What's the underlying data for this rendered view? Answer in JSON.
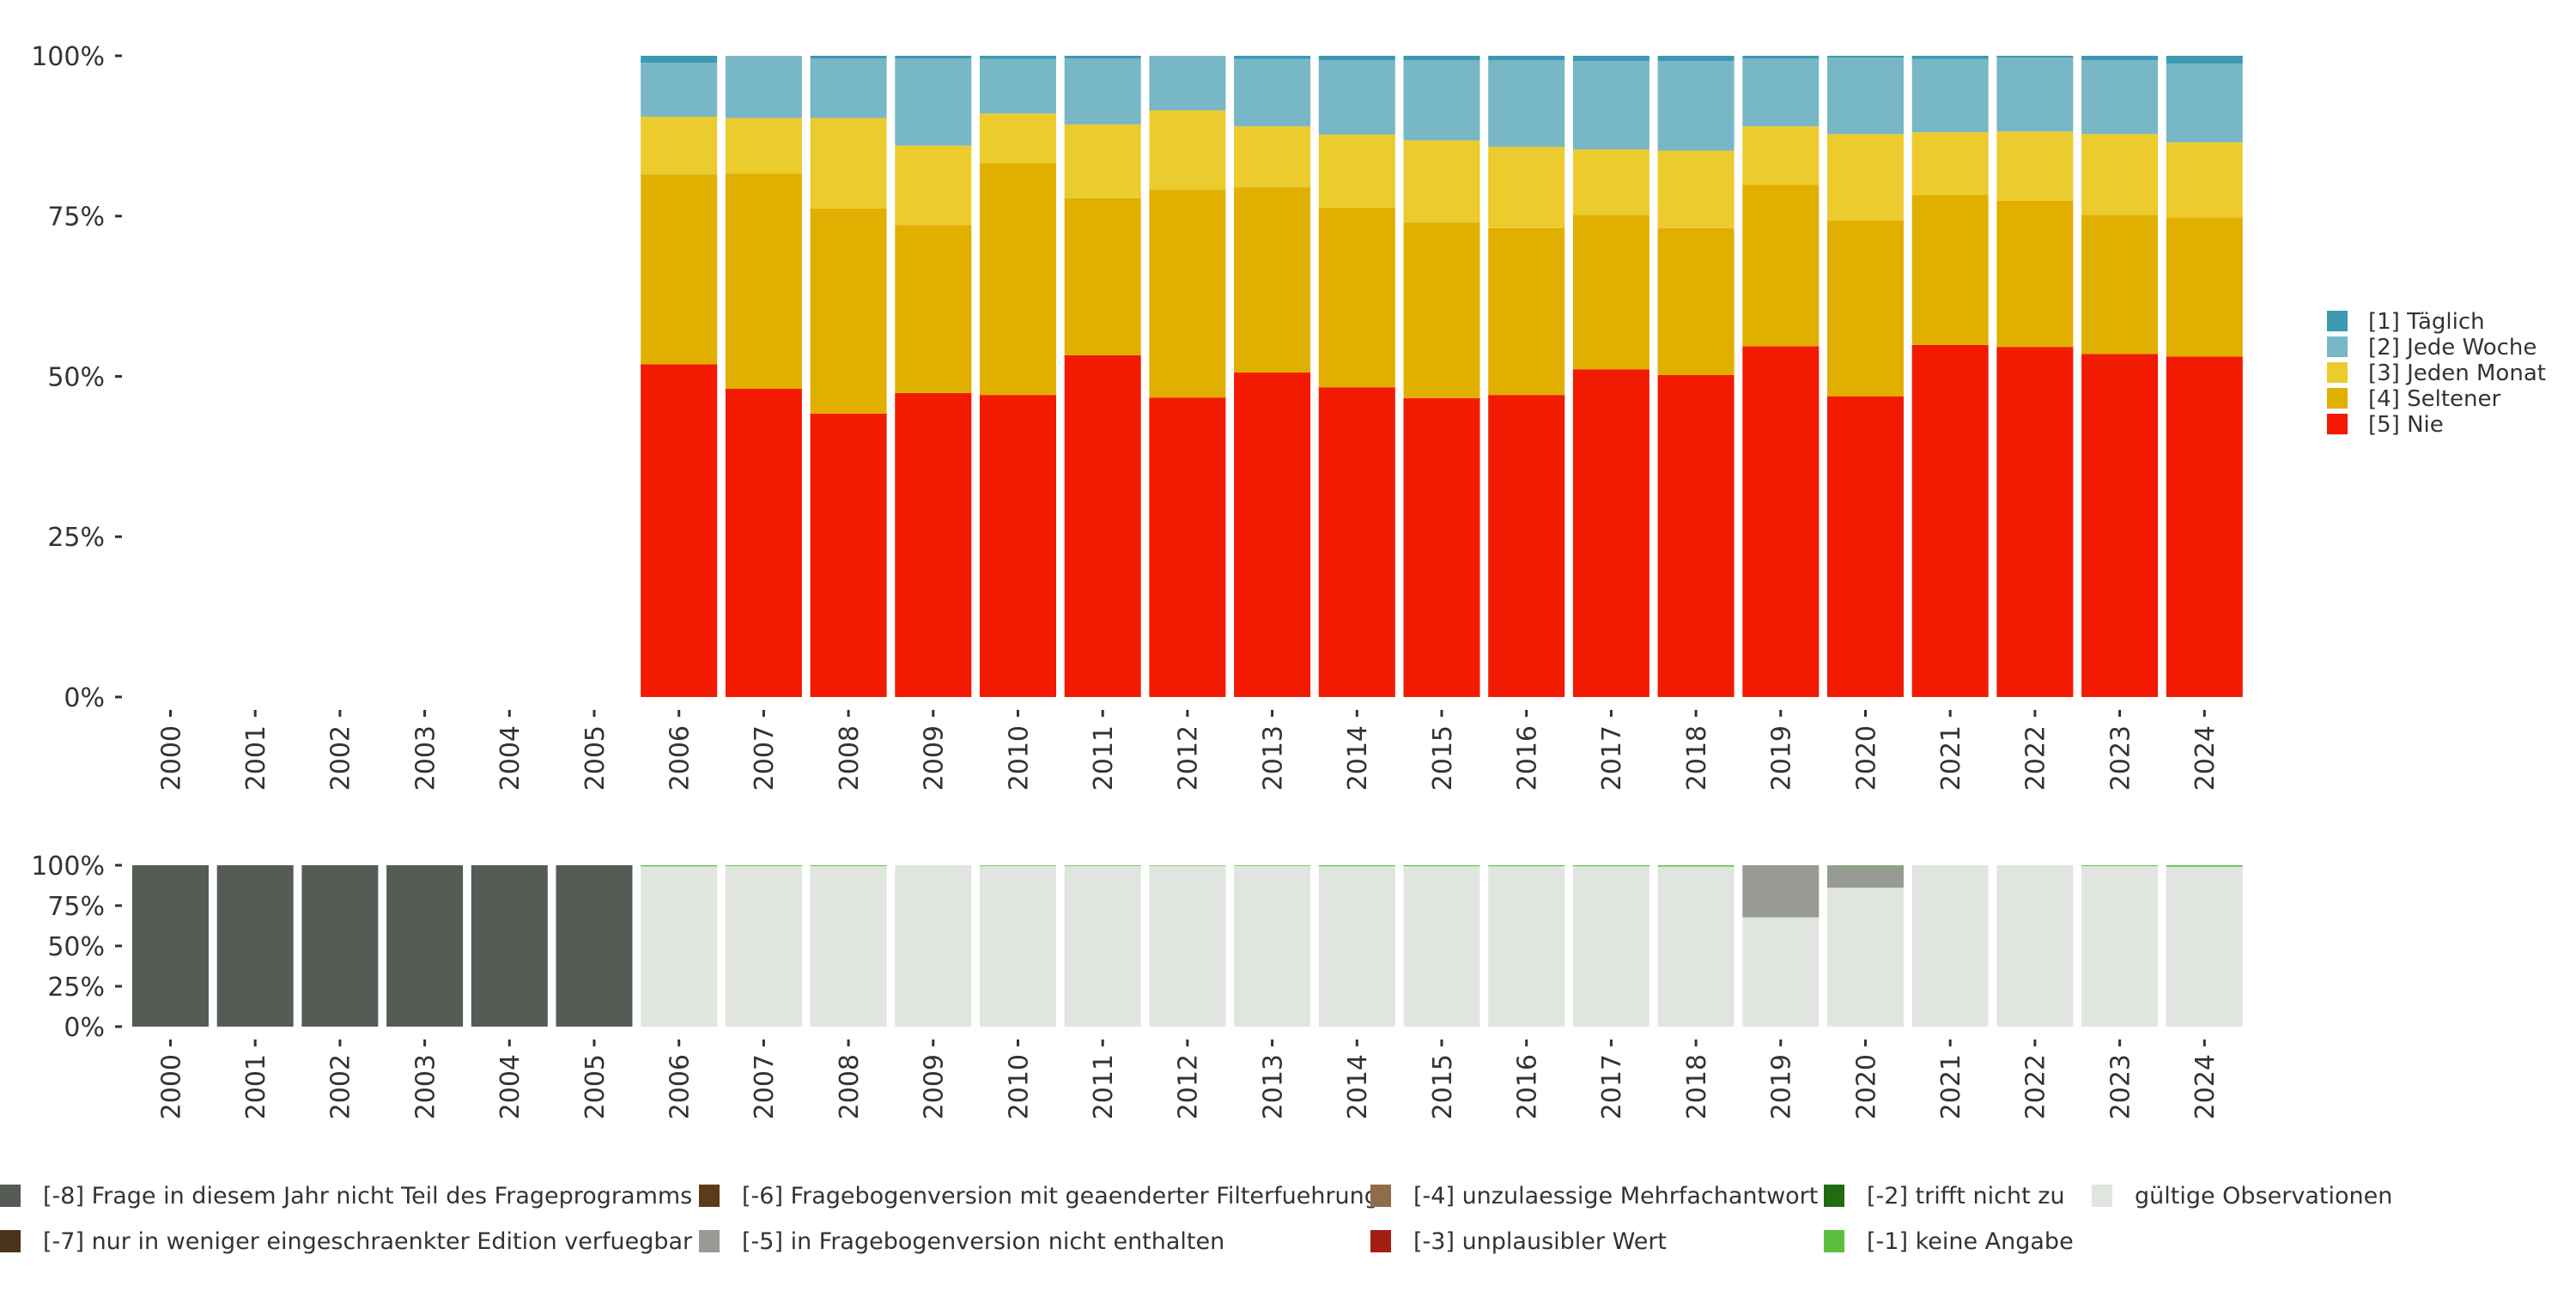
{
  "chart_data": [
    {
      "type": "bar",
      "stacked": true,
      "title": "",
      "xlabel": "",
      "ylabel": "",
      "ylim": [
        0,
        100
      ],
      "y_ticks": [
        "0%",
        "25%",
        "50%",
        "75%",
        "100%"
      ],
      "categories": [
        "2000",
        "2001",
        "2002",
        "2003",
        "2004",
        "2005",
        "2006",
        "2007",
        "2008",
        "2009",
        "2010",
        "2011",
        "2012",
        "2013",
        "2014",
        "2015",
        "2016",
        "2017",
        "2018",
        "2019",
        "2020",
        "2021",
        "2022",
        "2023",
        "2024"
      ],
      "legend_position": "right",
      "series": [
        {
          "name": "[5] Nie",
          "color": "#f21a00",
          "values": [
            0,
            0,
            0,
            0,
            0,
            0,
            51.9,
            48.1,
            44.2,
            47.4,
            47.1,
            53.3,
            46.7,
            50.6,
            48.3,
            46.6,
            47.1,
            51.1,
            50.2,
            54.7,
            46.9,
            54.9,
            54.6,
            53.5,
            53.1
          ]
        },
        {
          "name": "[4] Seltener",
          "color": "#e0af00",
          "values": [
            0,
            0,
            0,
            0,
            0,
            0,
            29.6,
            33.5,
            32.0,
            26.2,
            36.1,
            24.5,
            32.4,
            28.9,
            28.0,
            27.4,
            26.0,
            24.1,
            22.9,
            25.2,
            27.4,
            23.4,
            22.8,
            21.7,
            21.7
          ]
        },
        {
          "name": "[3] Jeden Monat",
          "color": "#ebcb2e",
          "values": [
            0,
            0,
            0,
            0,
            0,
            0,
            9.0,
            8.7,
            14.1,
            12.4,
            7.8,
            11.5,
            12.4,
            9.5,
            11.4,
            12.8,
            12.7,
            10.2,
            12.1,
            9.1,
            13.5,
            9.8,
            10.8,
            12.6,
            11.7
          ]
        },
        {
          "name": "[2] Jede Woche",
          "color": "#78b7c5",
          "values": [
            0,
            0,
            0,
            0,
            0,
            0,
            8.4,
            9.7,
            9.3,
            13.6,
            8.5,
            10.3,
            8.5,
            10.5,
            11.6,
            12.5,
            13.5,
            13.8,
            14.0,
            10.6,
            11.9,
            11.4,
            11.5,
            11.5,
            12.3
          ]
        },
        {
          "name": "[1] Täglich",
          "color": "#3b9ab2",
          "values": [
            0,
            0,
            0,
            0,
            0,
            0,
            1.1,
            0,
            0.4,
            0.4,
            0.5,
            0.4,
            0,
            0.5,
            0.7,
            0.7,
            0.7,
            0.8,
            0.8,
            0.4,
            0.3,
            0.5,
            0.3,
            0.7,
            1.2
          ]
        }
      ],
      "legend_order": [
        4,
        3,
        2,
        1,
        0
      ]
    },
    {
      "type": "bar",
      "stacked": true,
      "title": "",
      "xlabel": "",
      "ylabel": "",
      "ylim": [
        0,
        100
      ],
      "y_ticks": [
        "0%",
        "25%",
        "50%",
        "75%",
        "100%"
      ],
      "categories": [
        "2000",
        "2001",
        "2002",
        "2003",
        "2004",
        "2005",
        "2006",
        "2007",
        "2008",
        "2009",
        "2010",
        "2011",
        "2012",
        "2013",
        "2014",
        "2015",
        "2016",
        "2017",
        "2018",
        "2019",
        "2020",
        "2021",
        "2022",
        "2023",
        "2024"
      ],
      "legend_position": "bottom",
      "series": [
        {
          "name": "gültige Observationen",
          "color": "#e1e5e0",
          "values": [
            0,
            0,
            0,
            0,
            0,
            0,
            99.3,
            99.5,
            99.5,
            100,
            99.6,
            99.6,
            99.7,
            99.6,
            99.4,
            99.4,
            99.4,
            99.4,
            99.2,
            67.7,
            86.1,
            100,
            100,
            99.5,
            99.1
          ]
        },
        {
          "name": "[-5] in Fragebogenversion nicht enthalten",
          "color": "#989b94",
          "values": [
            0,
            0,
            0,
            0,
            0,
            0,
            0,
            0,
            0,
            0,
            0,
            0,
            0,
            0,
            0,
            0,
            0,
            0,
            0,
            32.3,
            13.6,
            0,
            0,
            0,
            0
          ]
        },
        {
          "name": "[-1] keine Angabe",
          "color": "#5bbf3e",
          "values": [
            0,
            0,
            0,
            0,
            0,
            0,
            0.7,
            0.5,
            0.5,
            0,
            0.4,
            0.4,
            0.3,
            0.4,
            0.6,
            0.6,
            0.6,
            0.6,
            0.8,
            0,
            0.3,
            0,
            0,
            0.5,
            0.9
          ]
        },
        {
          "name": "[-8] Frage in diesem Jahr nicht Teil des Frageprogramms",
          "color": "#555b55",
          "values": [
            100,
            100,
            100,
            100,
            100,
            100,
            0,
            0,
            0,
            0,
            0,
            0,
            0,
            0,
            0,
            0,
            0,
            0,
            0,
            0,
            0,
            0,
            0,
            0,
            0
          ]
        }
      ],
      "legend": [
        {
          "name": "[-8] Frage in diesem Jahr nicht Teil des Frageprogramms",
          "color": "#555b55"
        },
        {
          "name": "[-7] nur in weniger eingeschraenkter Edition verfuegbar",
          "color": "#4b321c"
        },
        {
          "name": "[-6] Fragebogenversion mit geaenderter Filterfuehrung",
          "color": "#5d3a1a"
        },
        {
          "name": "[-5] in Fragebogenversion nicht enthalten",
          "color": "#989b94"
        },
        {
          "name": "[-4] unzulaessige Mehrfachantwort",
          "color": "#8e6d48"
        },
        {
          "name": "[-3] unplausibler Wert",
          "color": "#a51e16"
        },
        {
          "name": "[-2] trifft nicht zu",
          "color": "#216b10"
        },
        {
          "name": "[-1] keine Angabe",
          "color": "#5bbf3e"
        },
        {
          "name": "gültige Observationen",
          "color": "#e1e5e0"
        }
      ]
    }
  ]
}
